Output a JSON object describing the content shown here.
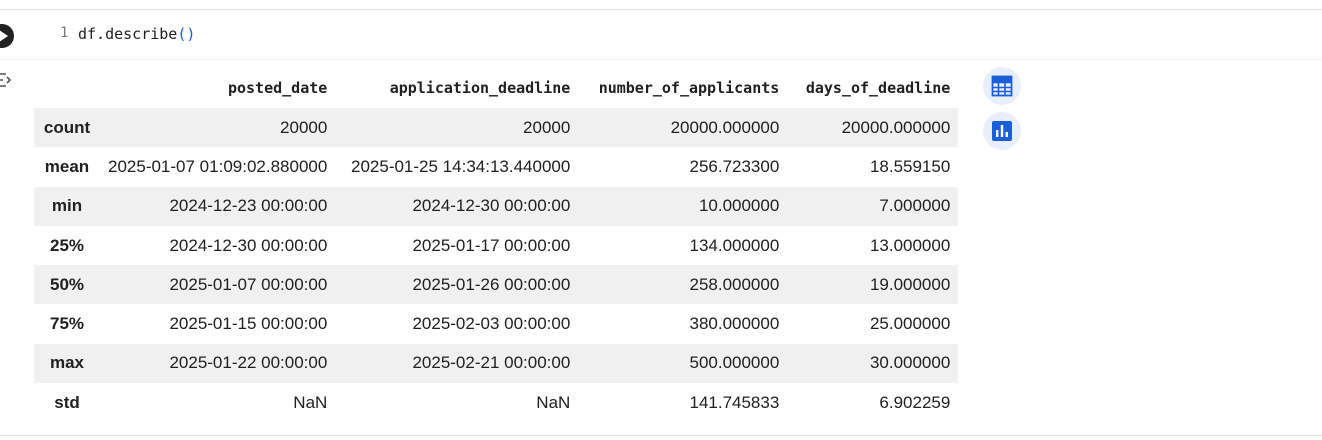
{
  "code_cell": {
    "line_number": "1",
    "code_main": "df.describe",
    "code_parens": "()"
  },
  "output_table": {
    "columns": [
      "posted_date",
      "application_deadline",
      "number_of_applicants",
      "days_of_deadline"
    ],
    "rows": [
      {
        "label": "count",
        "values": [
          "20000",
          "20000",
          "20000.000000",
          "20000.000000"
        ]
      },
      {
        "label": "mean",
        "values": [
          "2025-01-07 01:09:02.880000",
          "2025-01-25 14:34:13.440000",
          "256.723300",
          "18.559150"
        ]
      },
      {
        "label": "min",
        "values": [
          "2024-12-23 00:00:00",
          "2024-12-30 00:00:00",
          "10.000000",
          "7.000000"
        ]
      },
      {
        "label": "25%",
        "values": [
          "2024-12-30 00:00:00",
          "2025-01-17 00:00:00",
          "134.000000",
          "13.000000"
        ]
      },
      {
        "label": "50%",
        "values": [
          "2025-01-07 00:00:00",
          "2025-01-26 00:00:00",
          "258.000000",
          "19.000000"
        ]
      },
      {
        "label": "75%",
        "values": [
          "2025-01-15 00:00:00",
          "2025-02-03 00:00:00",
          "380.000000",
          "25.000000"
        ]
      },
      {
        "label": "max",
        "values": [
          "2025-01-22 00:00:00",
          "2025-02-21 00:00:00",
          "500.000000",
          "30.000000"
        ]
      },
      {
        "label": "std",
        "values": [
          "NaN",
          "NaN",
          "141.745833",
          "6.902259"
        ]
      }
    ]
  },
  "icons": {
    "run": "play-icon",
    "output_toggle": "output-toggle-icon",
    "table_view": "table-icon",
    "chart_suggest": "bar-chart-icon"
  },
  "colors": {
    "accent": "#1a5fd8",
    "row_stripe": "#f0f0f0",
    "side_button_bg": "#e8effa"
  }
}
